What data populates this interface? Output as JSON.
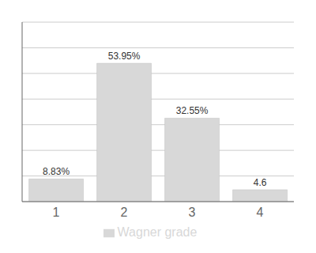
{
  "chart_data": {
    "type": "bar",
    "categories": [
      "1",
      "2",
      "3",
      "4"
    ],
    "series": [
      {
        "name": "Wagner grade",
        "color": "#d8d8d8",
        "values": [
          8.83,
          53.95,
          32.55,
          4.65
        ],
        "value_labels": [
          "8.83%",
          "53.95%",
          "32.55%",
          "4.6"
        ]
      }
    ],
    "ylim": [
      0,
      70
    ],
    "yticks": [
      0,
      10,
      20,
      30,
      40,
      50,
      60
    ],
    "grid": true,
    "legend": "bottom",
    "data_labels": true,
    "tick_labels": "x"
  }
}
